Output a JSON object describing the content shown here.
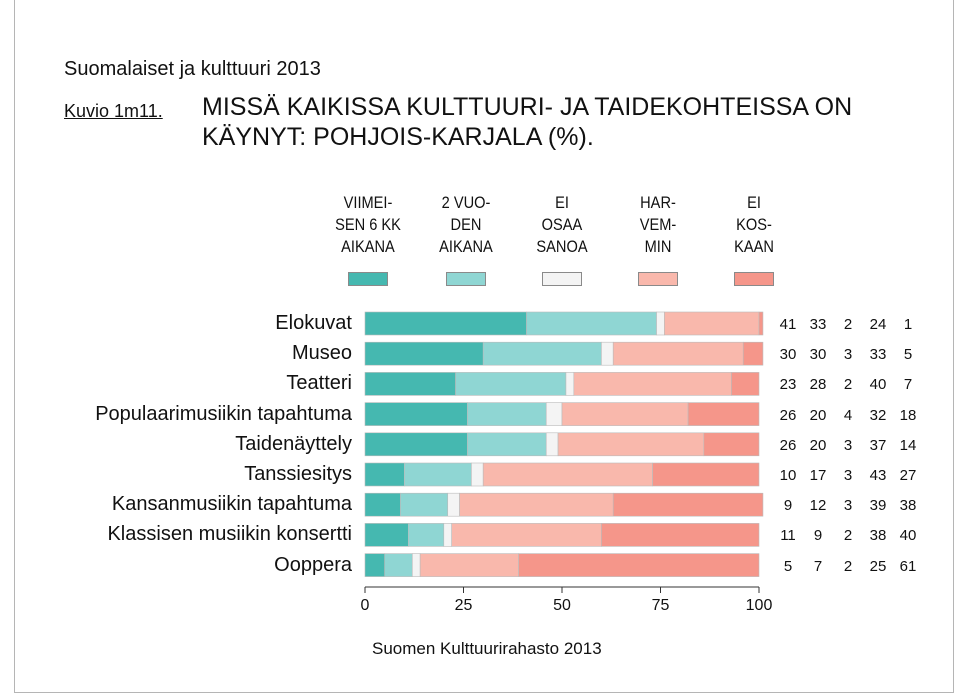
{
  "header": {
    "suptitle": "Suomalaiset ja kulttuuri 2013",
    "figure_no": "Kuvio 1m11.",
    "title": "MISSÄ KAIKISSA KULTTUURI- JA TAIDEKOHTEISSA ON KÄYNYT: POHJOIS-KARJALA (%)."
  },
  "source": "Suomen Kulttuurirahasto 2013",
  "chart_data": {
    "type": "bar",
    "orientation": "horizontal",
    "stacked": true,
    "categories": [
      "Elokuvat",
      "Museo",
      "Teatteri",
      "Populaarimusiikin tapahtuma",
      "Taidenäyttely",
      "Tanssiesitys",
      "Kansanmusiikin tapahtuma",
      "Klassisen musiikin konsertti",
      "Ooppera"
    ],
    "series": [
      {
        "name": "VIIMEI-\nSEN 6 KK\nAIKANA",
        "color": "#45b8b0",
        "values": [
          41,
          30,
          23,
          26,
          26,
          10,
          9,
          11,
          5
        ]
      },
      {
        "name": "2 VUO-\nDEN\nAIKANA",
        "color": "#8fd6d3",
        "values": [
          33,
          30,
          28,
          20,
          20,
          17,
          12,
          9,
          7
        ]
      },
      {
        "name": "EI\nOSAA\nSANOA",
        "color": "#f4f4f4",
        "values": [
          2,
          3,
          2,
          4,
          3,
          3,
          3,
          2,
          2
        ]
      },
      {
        "name": "HAR-\nVEM-\nMIN",
        "color": "#f9b8ac",
        "values": [
          24,
          33,
          40,
          32,
          37,
          43,
          39,
          38,
          25
        ]
      },
      {
        "name": "EI\nKOS-\nKAAN",
        "color": "#f5968a",
        "values": [
          1,
          5,
          7,
          18,
          14,
          27,
          38,
          40,
          61
        ]
      }
    ],
    "xlim": [
      0,
      100
    ],
    "xticks": [
      "0",
      "25",
      "50",
      "75",
      "100"
    ],
    "grid": false,
    "legend": "top",
    "value_table": "right"
  }
}
